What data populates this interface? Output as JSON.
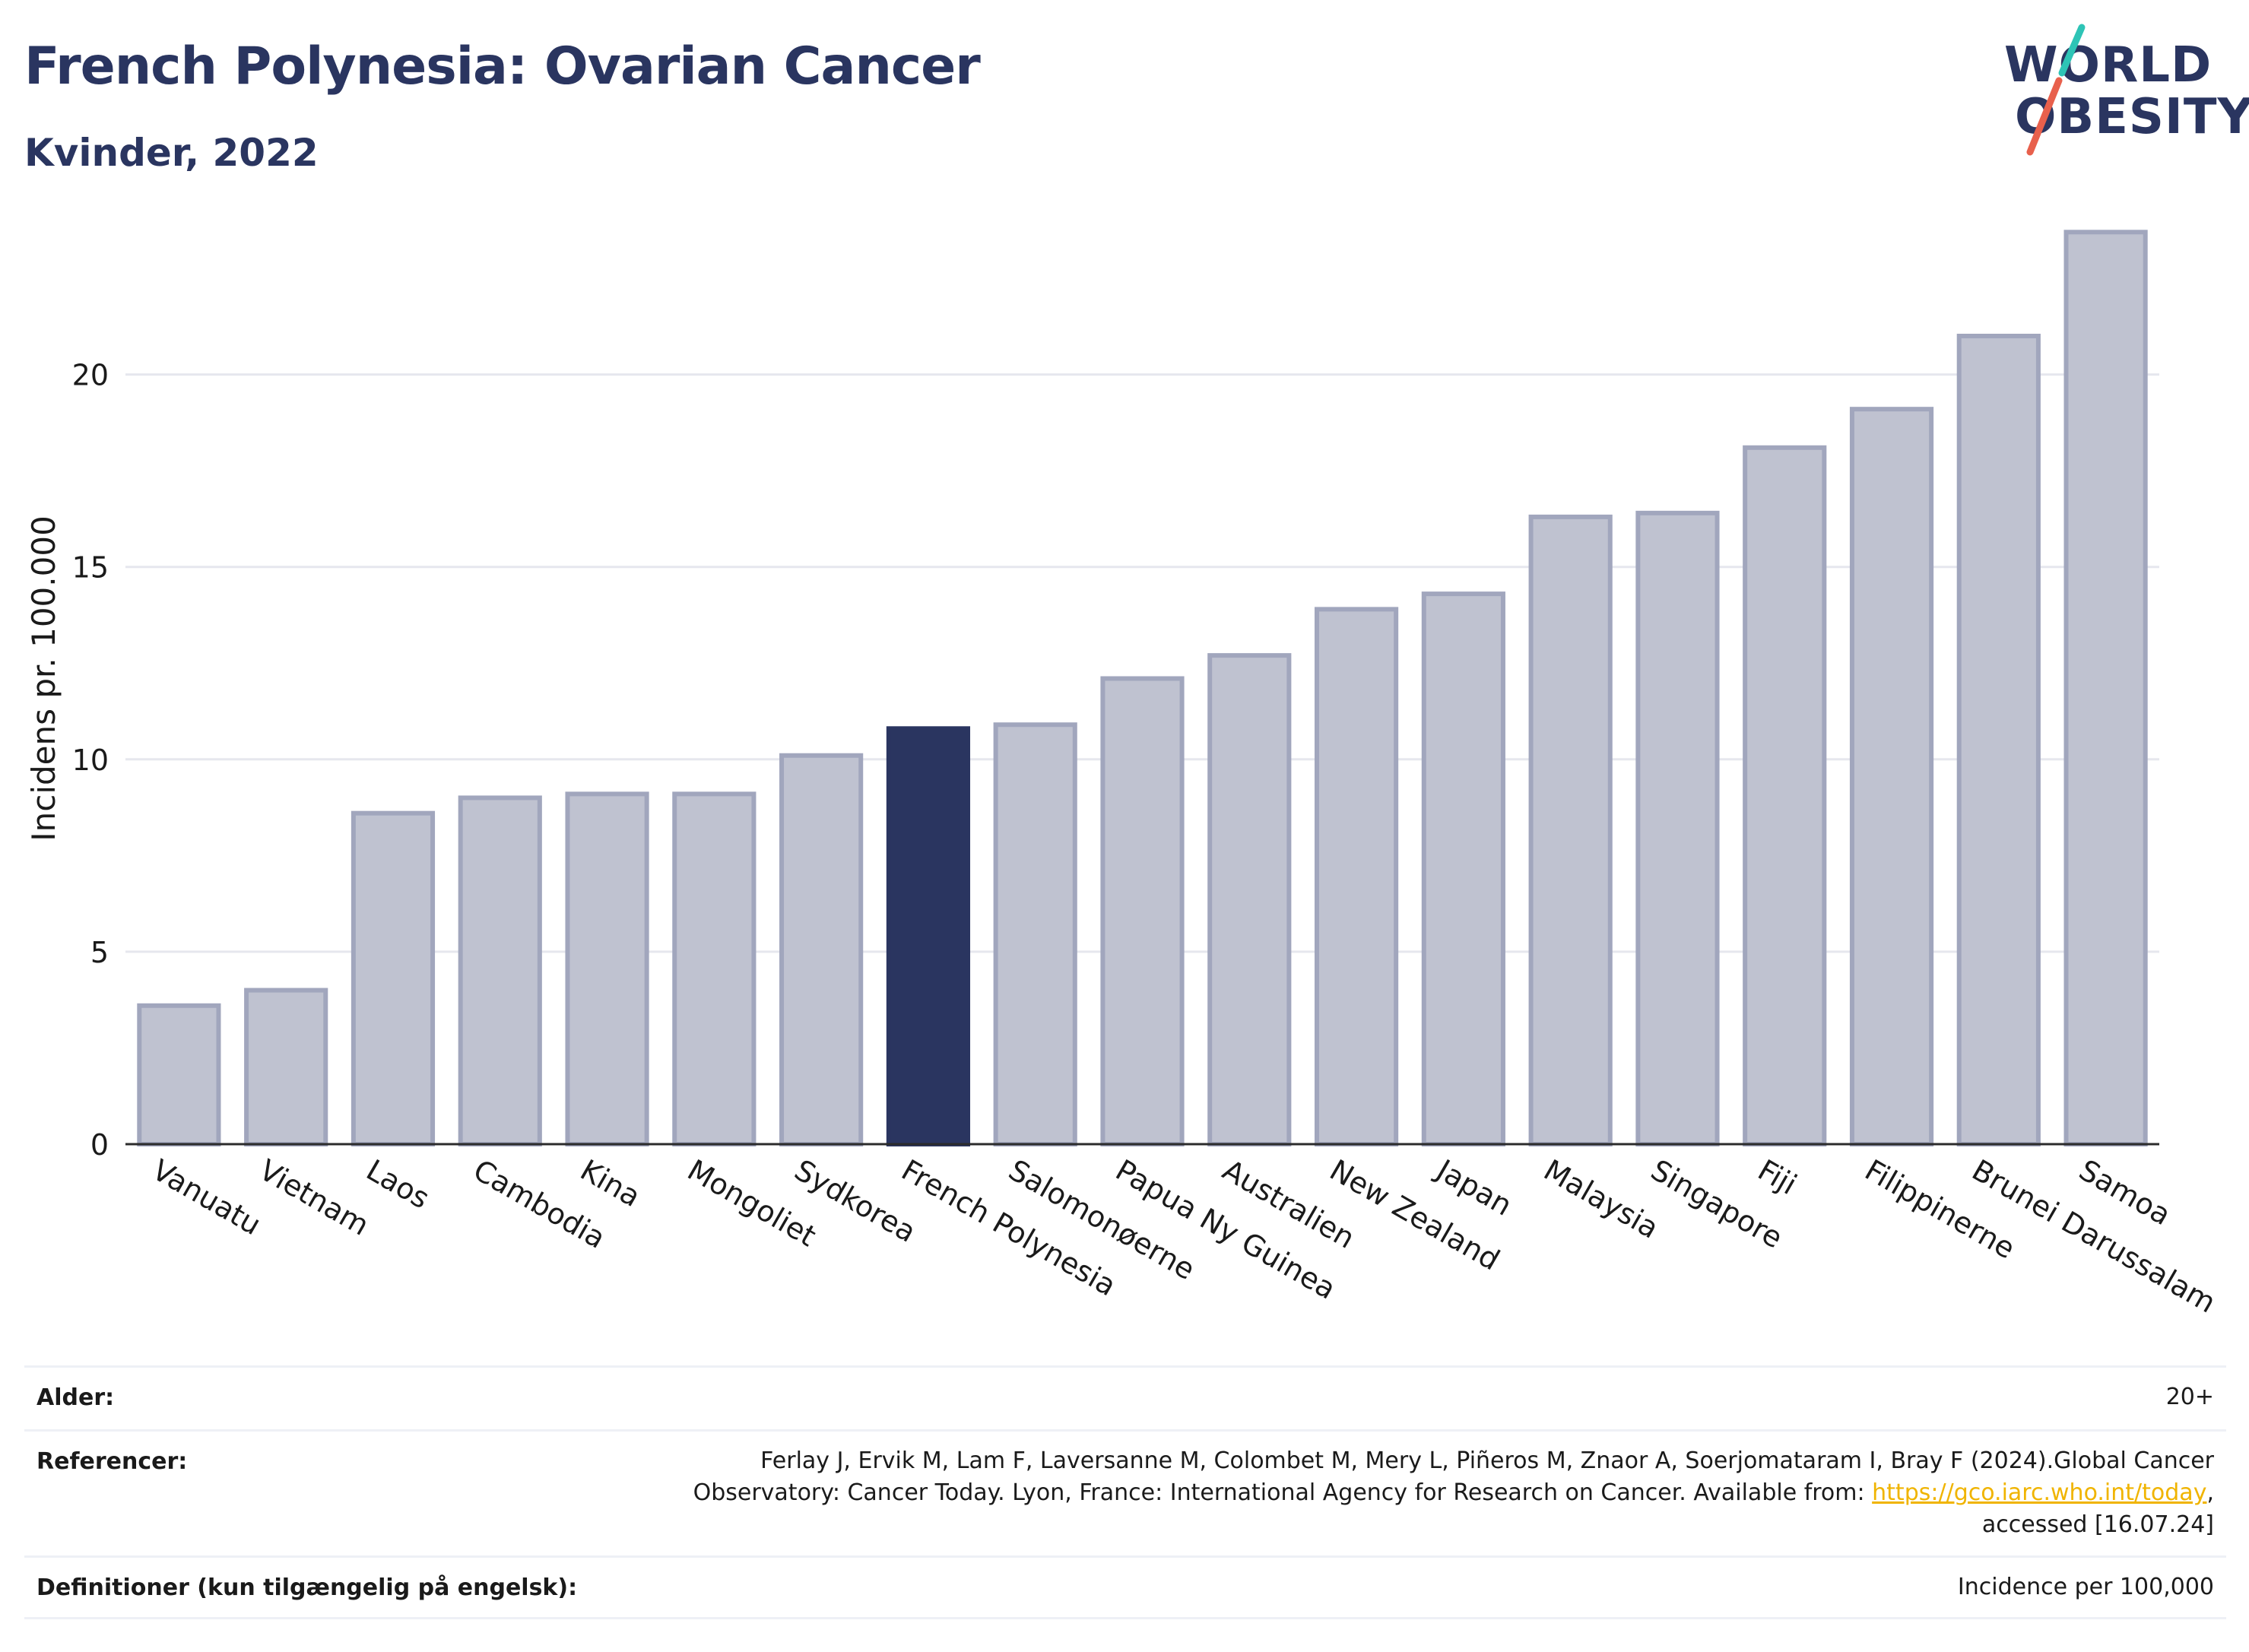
{
  "header": {
    "title": "French Polynesia: Ovarian Cancer",
    "subtitle": "Kvinder, 2022"
  },
  "logo": {
    "line1": "WORLD",
    "line2": "OBESITY",
    "text_color": "#2a3560",
    "slash_colors": [
      "#2ec4b6",
      "#e8604c"
    ]
  },
  "chart_data": {
    "type": "bar",
    "ylabel": "Incidens pr. 100.000",
    "xlabel": "",
    "ylim": [
      0,
      24.2
    ],
    "yticks": [
      0,
      5,
      10,
      15,
      20
    ],
    "grid": true,
    "highlight": "French Polynesia",
    "colors": {
      "bar": "#bfc2d0",
      "bar_border": "#a1a6bd",
      "highlight": "#2a3560",
      "grid": "#e6e7ee",
      "axis": "#2b2b2b"
    },
    "categories": [
      "Vanuatu",
      "Vietnam",
      "Laos",
      "Cambodia",
      "Kina",
      "Mongoliet",
      "Sydkorea",
      "French Polynesia",
      "Salomonøerne",
      "Papua Ny Guinea",
      "Australien",
      "New Zealand",
      "Japan",
      "Malaysia",
      "Singapore",
      "Fiji",
      "Filippinerne",
      "Brunei Darussalam",
      "Samoa"
    ],
    "values": [
      3.6,
      4.0,
      8.6,
      9.0,
      9.1,
      9.1,
      10.1,
      10.8,
      10.9,
      12.1,
      12.7,
      13.9,
      14.3,
      16.3,
      16.4,
      18.1,
      19.1,
      21.0,
      23.7
    ]
  },
  "info": {
    "age_label": "Alder:",
    "age_value": "20+",
    "ref_label": "Referencer:",
    "ref_line1": "Ferlay J, Ervik M, Lam F, Laversanne M, Colombet M, Mery L, Piñeros M, Znaor A, Soerjomataram I, Bray F (2024).Global Cancer",
    "ref_line2_pre": "Observatory: Cancer Today. Lyon, France: International Agency for Research on Cancer. Available from: ",
    "ref_link": "https://gco.iarc.who.int/today",
    "ref_line2_post": ",",
    "ref_line3": "accessed [16.07.24]",
    "def_label": "Definitioner (kun tilgængelig på engelsk):",
    "def_value": "Incidence per 100,000"
  }
}
